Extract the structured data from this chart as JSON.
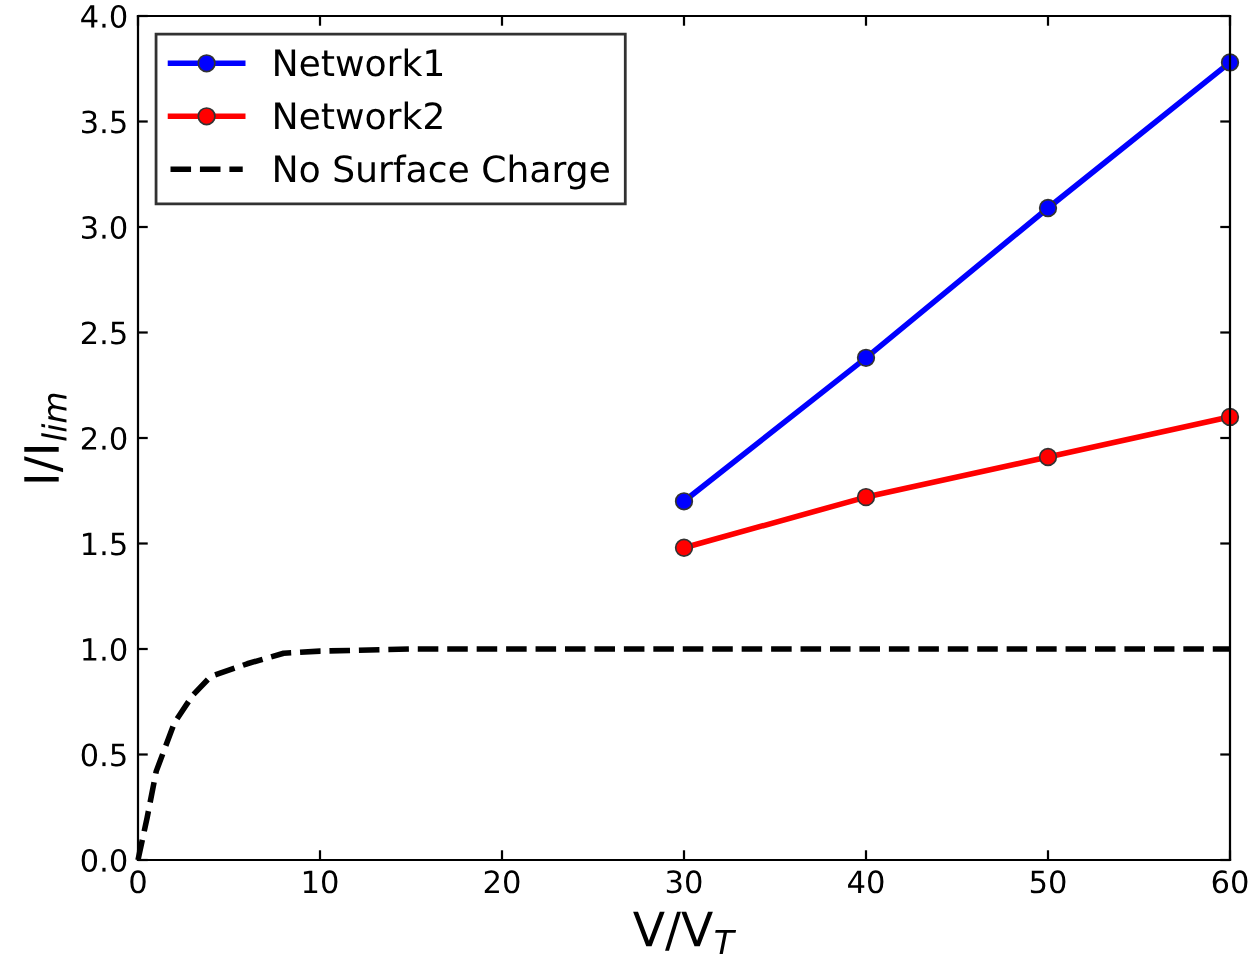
{
  "chart_data": {
    "type": "line",
    "xlabel": "V/V$_{T}$",
    "ylabel": "I/I$_{lim}$",
    "xlim": [
      0,
      60
    ],
    "ylim": [
      0,
      4.0
    ],
    "xticks": [
      0,
      10,
      20,
      30,
      40,
      50,
      60
    ],
    "yticks": [
      {
        "value": 0,
        "label": "0.0"
      },
      {
        "value": 0.5,
        "label": "0.5"
      },
      {
        "value": 1,
        "label": "1.0"
      },
      {
        "value": 1.5,
        "label": "1.5"
      },
      {
        "value": 2,
        "label": "2.0"
      },
      {
        "value": 2.5,
        "label": "2.5"
      },
      {
        "value": 3,
        "label": "3.0"
      },
      {
        "value": 3.5,
        "label": "3.5"
      },
      {
        "value": 4,
        "label": "4.0"
      }
    ],
    "grid": false,
    "legend": "top left",
    "series": [
      {
        "name": "Network1",
        "color": "#0000ff",
        "marker": "circle",
        "line_style": "solid",
        "x": [
          30,
          40,
          50,
          60
        ],
        "values": [
          1.7,
          2.38,
          3.09,
          3.78
        ]
      },
      {
        "name": "Network2",
        "color": "#ff0000",
        "marker": "circle",
        "line_style": "solid",
        "x": [
          30,
          40,
          50,
          60
        ],
        "values": [
          1.48,
          1.72,
          1.91,
          2.1
        ]
      },
      {
        "name": "No Surface Charge",
        "color": "#000000",
        "marker": "none",
        "line_style": "dashed",
        "x": [
          0,
          0.5,
          1,
          2,
          3,
          4,
          6,
          8,
          10,
          15,
          20,
          30,
          40,
          50,
          60
        ],
        "values": [
          0,
          0.2,
          0.42,
          0.65,
          0.78,
          0.87,
          0.93,
          0.98,
          0.99,
          1.0,
          1.0,
          1.0,
          1.0,
          1.0,
          1.0
        ]
      }
    ]
  }
}
